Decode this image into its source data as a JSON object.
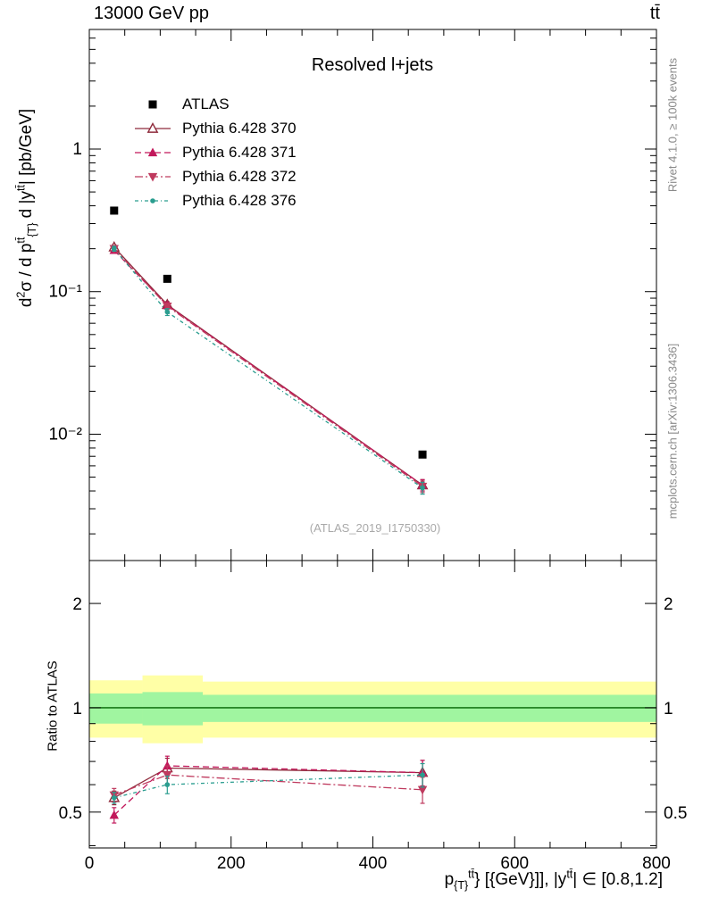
{
  "header": {
    "left": "13000 GeV pp",
    "right": "tt̄"
  },
  "side_notes": {
    "rivet": "Rivet 4.1.0, ≥ 100k events",
    "mcplots": "mcplots.cern.ch [arXiv:1306.3436]"
  },
  "main_panel": {
    "title": "Resolved l+jets",
    "watermark": "(ATLAS_2019_I1750330)",
    "ylabel_segments": [
      {
        "t": "d"
      },
      {
        "t": "2",
        "s": "sup"
      },
      {
        "t": "σ / d p"
      },
      {
        "t": "tt̄",
        "s": "sup"
      },
      {
        "t": "{T}",
        "s": "sub"
      },
      {
        "t": " d |y"
      },
      {
        "t": "tt̄",
        "s": "sup"
      },
      {
        "t": "| [pb/GeV]"
      }
    ]
  },
  "ratio_panel": {
    "ylabel": "Ratio to ATLAS"
  },
  "xlabel_segments": [
    {
      "t": "p"
    },
    {
      "t": "{T}",
      "s": "sub"
    },
    {
      "t": "tt̄",
      "s": "sup"
    },
    {
      "t": "} [{GeV}]], |y"
    },
    {
      "t": "tt̄",
      "s": "sup"
    },
    {
      "t": "| ∈ [0.8,1.2]"
    }
  ],
  "chart_data": {
    "type": "line",
    "x": [
      35,
      110,
      470
    ],
    "xlim": [
      0,
      800
    ],
    "x_ticks": [
      {
        "v": 0,
        "t": "0"
      },
      {
        "v": 200,
        "t": "200"
      },
      {
        "v": 400,
        "t": "400"
      },
      {
        "v": 600,
        "t": "600"
      },
      {
        "v": 800,
        "t": "800"
      }
    ],
    "x_minor_step": 50,
    "main": {
      "yscale": "log",
      "ylim": [
        0.0013,
        6.9
      ],
      "y_ticks": [
        {
          "v": 1,
          "t": "1"
        },
        {
          "v": 0.1,
          "t": "10⁻¹"
        },
        {
          "v": 0.01,
          "t": "10⁻²"
        }
      ],
      "series": [
        {
          "label": "ATLAS",
          "color": "#000000",
          "marker": "square",
          "line": "none",
          "values": [
            0.37,
            0.123,
            0.0072
          ],
          "errors": [
            0,
            0,
            0
          ]
        },
        {
          "label": "Pythia 6.428 370",
          "color": "#8f2b3c",
          "marker": "triangle-open",
          "line": "solid",
          "values": [
            0.205,
            0.081,
            0.0044
          ],
          "errors": [
            0.008,
            0.004,
            0.0004
          ]
        },
        {
          "label": "Pythia 6.428 371",
          "color": "#c2185b",
          "marker": "triangle",
          "line": "dashed",
          "values": [
            0.195,
            0.08,
            0.0044
          ],
          "errors": [
            0.008,
            0.004,
            0.0004
          ]
        },
        {
          "label": "Pythia 6.428 372",
          "color": "#bf3a5e",
          "marker": "triangle-down",
          "line": "dashdot",
          "values": [
            0.2,
            0.079,
            0.0043
          ],
          "errors": [
            0.008,
            0.004,
            0.0004
          ]
        },
        {
          "label": "Pythia 6.428 376",
          "color": "#2a9d8f",
          "marker": "circle",
          "line": "dashdotdot",
          "values": [
            0.2,
            0.072,
            0.0042
          ],
          "errors": [
            0.008,
            0.004,
            0.0004
          ]
        }
      ]
    },
    "ratio": {
      "yscale": "log",
      "ylim": [
        0.394,
        2.66
      ],
      "y_ticks": [
        {
          "v": 2,
          "t": "2"
        },
        {
          "v": 1,
          "t": "1"
        },
        {
          "v": 0.5,
          "t": "0.5"
        }
      ],
      "y_minor": [
        0.4,
        0.6,
        0.7,
        0.8,
        0.9
      ],
      "reference_line": 1,
      "colors": {
        "band_outer": "#ffffa6",
        "band_inner": "#a0f5a0",
        "line": "#006400"
      },
      "bands": [
        {
          "x0": 0,
          "x1": 75,
          "outer": [
            0.82,
            1.2
          ],
          "inner": [
            0.9,
            1.1
          ]
        },
        {
          "x0": 75,
          "x1": 160,
          "outer": [
            0.79,
            1.24
          ],
          "inner": [
            0.89,
            1.11
          ]
        },
        {
          "x0": 160,
          "x1": 800,
          "outer": [
            0.82,
            1.19
          ],
          "inner": [
            0.91,
            1.09
          ]
        }
      ],
      "series": [
        {
          "label": "Pythia 6.428 370",
          "values": [
            0.55,
            0.67,
            0.65
          ],
          "errors": [
            0.025,
            0.045,
            0.055
          ]
        },
        {
          "label": "Pythia 6.428 371",
          "values": [
            0.49,
            0.68,
            0.65
          ],
          "errors": [
            0.025,
            0.045,
            0.055
          ]
        },
        {
          "label": "Pythia 6.428 372",
          "values": [
            0.56,
            0.64,
            0.58
          ],
          "errors": [
            0.025,
            0.04,
            0.05
          ]
        },
        {
          "label": "Pythia 6.428 376",
          "values": [
            0.55,
            0.6,
            0.64
          ],
          "errors": [
            0.02,
            0.035,
            0.05
          ]
        }
      ]
    }
  }
}
